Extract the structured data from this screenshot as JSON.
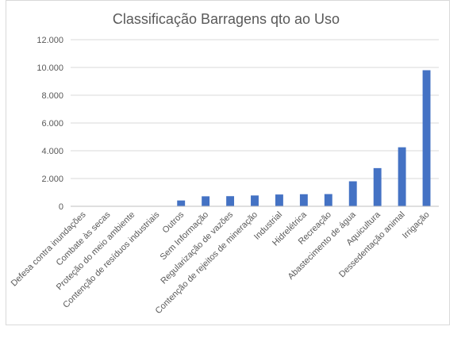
{
  "chart_data": {
    "type": "bar",
    "title": "Classificação Barragens qto ao Uso",
    "xlabel": "",
    "ylabel": "",
    "ylim": [
      0,
      12000
    ],
    "yticks": [
      "0",
      "2.000",
      "4.000",
      "6.000",
      "8.000",
      "10.000",
      "12.000"
    ],
    "ytick_values": [
      0,
      2000,
      4000,
      6000,
      8000,
      10000,
      12000
    ],
    "grid": true,
    "legend": "none",
    "bar_color": "#4472C4",
    "categories": [
      "Defesa contra inundações",
      "Combate às secas",
      "Proteção do meio ambiente",
      "Contenção de resíduos industriais",
      "Outros",
      "Sem Informação",
      "Regularização de vazões",
      "Contenção de rejeitos de mineração",
      "Industrial",
      "Hidrelétrica",
      "Recreação",
      "Abastecimento de água",
      "Aquicultura",
      "Dessedentação animal",
      "Irrigação"
    ],
    "values": [
      10,
      15,
      20,
      25,
      420,
      720,
      730,
      780,
      850,
      870,
      880,
      1800,
      2750,
      4250,
      9800
    ]
  }
}
